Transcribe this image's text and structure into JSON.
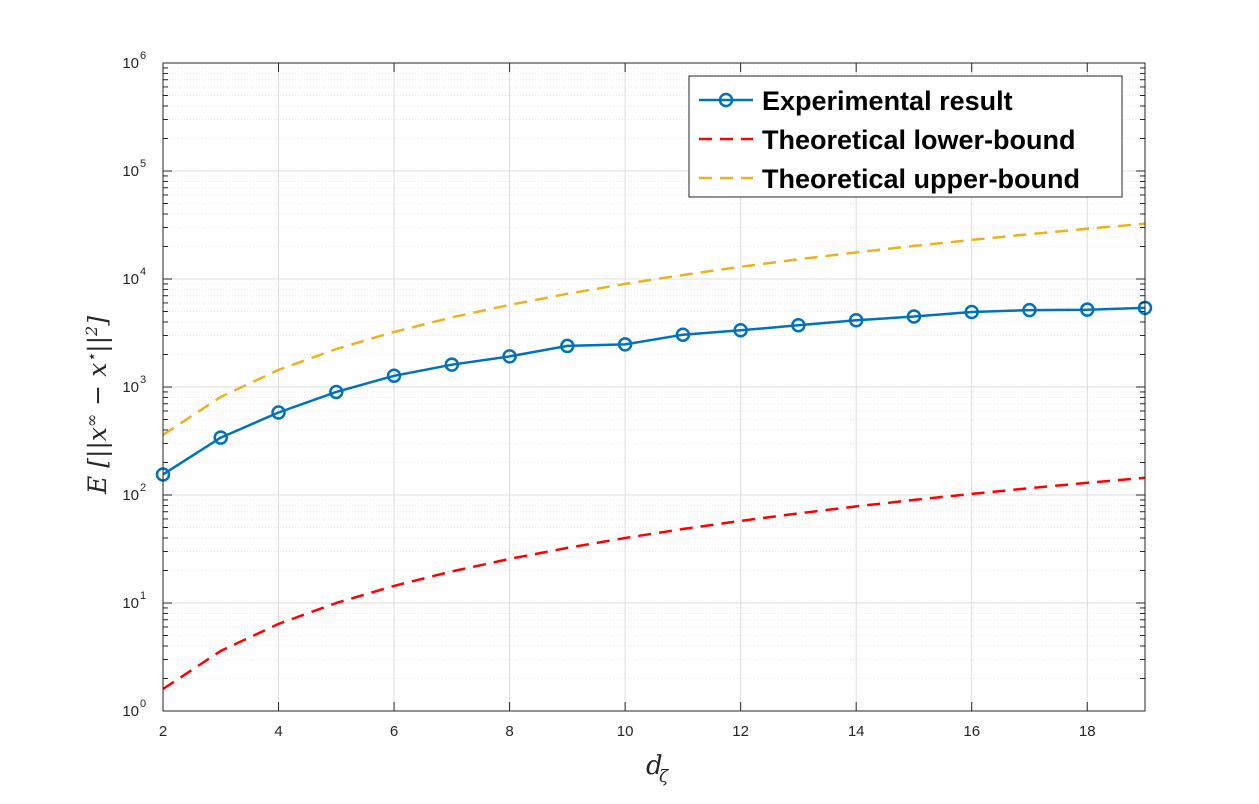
{
  "chart_data": {
    "type": "line",
    "title": "",
    "xlabel": "d_ζ",
    "ylabel": "E [||x^∞ − x^⋆||²]",
    "xlim": [
      2,
      19
    ],
    "ylim": [
      1,
      1000000
    ],
    "yscale": "log",
    "grid": true,
    "minor_grid": true,
    "legend_position": "top-right",
    "x_ticks": [
      2,
      4,
      6,
      8,
      10,
      12,
      14,
      16,
      18
    ],
    "x_tick_labels": [
      "2",
      "4",
      "6",
      "8",
      "10",
      "12",
      "14",
      "16",
      "18"
    ],
    "y_ticks": [
      1,
      10,
      100,
      1000,
      10000,
      100000,
      1000000
    ],
    "y_tick_labels": [
      {
        "base": "10",
        "exp": "0"
      },
      {
        "base": "10",
        "exp": "1"
      },
      {
        "base": "10",
        "exp": "2"
      },
      {
        "base": "10",
        "exp": "3"
      },
      {
        "base": "10",
        "exp": "4"
      },
      {
        "base": "10",
        "exp": "5"
      },
      {
        "base": "10",
        "exp": "6"
      }
    ],
    "series": [
      {
        "name": "Experimental result",
        "color": "#0072BD",
        "style": "solid",
        "marker": "circle",
        "x": [
          2,
          3,
          4,
          5,
          6,
          7,
          8,
          9,
          10,
          11,
          12,
          13,
          14,
          15,
          16,
          17,
          18,
          19
        ],
        "y": [
          155,
          340,
          580,
          900,
          1270,
          1610,
          1920,
          2400,
          2480,
          3050,
          3350,
          3730,
          4150,
          4500,
          4950,
          5150,
          5200,
          5400
        ]
      },
      {
        "name": "Theoretical lower-bound",
        "color": "#FF0000",
        "style": "dashed",
        "marker": "none",
        "x": [
          2,
          3,
          4,
          5,
          6,
          7,
          8,
          9,
          10,
          11,
          12,
          13,
          14,
          15,
          16,
          17,
          18,
          19
        ],
        "y": [
          1.6,
          3.6,
          6.4,
          10,
          14.4,
          19.6,
          25.6,
          32.4,
          40,
          48.4,
          57.6,
          67.6,
          78.4,
          90,
          102.4,
          115.6,
          129.6,
          144.4
        ]
      },
      {
        "name": "Theoretical upper-bound",
        "color": "#EDB120",
        "style": "dashed",
        "marker": "none",
        "x": [
          2,
          3,
          4,
          5,
          6,
          7,
          8,
          9,
          10,
          11,
          12,
          13,
          14,
          15,
          16,
          17,
          18,
          19
        ],
        "y": [
          360,
          810,
          1440,
          2250,
          3240,
          4410,
          5760,
          7290,
          9000,
          10890,
          12960,
          15210,
          17640,
          20250,
          23040,
          26010,
          29160,
          32490
        ]
      }
    ]
  }
}
